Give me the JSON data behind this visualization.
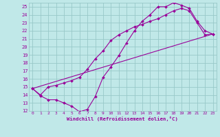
{
  "xlabel": "Windchill (Refroidissement éolien,°C)",
  "bg_color": "#c0e8e8",
  "grid_color": "#98c8c8",
  "line_color": "#990099",
  "xlim": [
    -0.5,
    23.5
  ],
  "ylim": [
    12,
    25.5
  ],
  "xticks": [
    0,
    1,
    2,
    3,
    4,
    5,
    6,
    7,
    8,
    9,
    10,
    11,
    12,
    13,
    14,
    15,
    16,
    17,
    18,
    19,
    20,
    21,
    22,
    23
  ],
  "yticks": [
    12,
    13,
    14,
    15,
    16,
    17,
    18,
    19,
    20,
    21,
    22,
    23,
    24,
    25
  ],
  "line1_x": [
    0,
    1,
    2,
    3,
    4,
    5,
    6,
    7,
    8,
    9,
    10,
    11,
    12,
    13,
    14,
    15,
    16,
    17,
    18,
    19,
    20,
    21,
    22,
    23
  ],
  "line1_y": [
    14.8,
    13.9,
    13.4,
    13.4,
    13.0,
    12.6,
    11.9,
    12.2,
    13.8,
    16.2,
    17.5,
    18.9,
    20.5,
    22.0,
    23.2,
    24.0,
    25.0,
    25.0,
    25.5,
    25.2,
    24.8,
    23.2,
    22.0,
    21.6
  ],
  "line2_x": [
    0,
    1,
    2,
    3,
    4,
    5,
    6,
    7,
    8,
    9,
    10,
    11,
    12,
    13,
    14,
    15,
    16,
    17,
    18,
    19,
    20,
    21,
    22,
    23
  ],
  "line2_y": [
    14.8,
    14.0,
    15.0,
    15.2,
    15.5,
    15.8,
    16.2,
    17.2,
    18.5,
    19.5,
    20.8,
    21.5,
    22.0,
    22.5,
    22.8,
    23.2,
    23.5,
    24.0,
    24.5,
    24.8,
    24.5,
    23.0,
    21.5,
    21.6
  ],
  "line3_x": [
    0,
    23
  ],
  "line3_y": [
    14.8,
    21.6
  ]
}
